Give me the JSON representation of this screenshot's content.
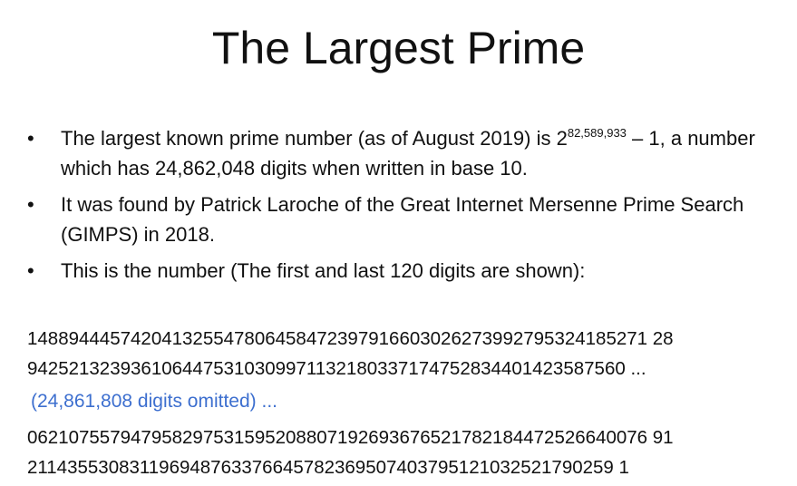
{
  "slide": {
    "title": "The Largest Prime",
    "bullets": [
      {
        "text_before": "The largest known prime number (as of August 2019) is 2",
        "superscript": "82,589,933",
        "text_after": " – 1, a number which has 24,862,048 digits when written in base 10."
      },
      {
        "text": "It was found by Patrick Laroche of the Great Internet Mersenne Prime Search (GIMPS) in 2018."
      },
      {
        "text": "This is the number (The first and last 120 digits are shown):"
      }
    ],
    "bullet_symbol": "•",
    "digits_first": [
      "148894445742041325547806458472397916603026273992795324185271 28",
      "9425213239361064475310309971132180337174752834401423587560 ..."
    ],
    "omitted": "(24,861,808 digits omitted) ...",
    "digits_last": [
      "062107557947958297531595208807192693676521782184472526640076 91",
      "211435530831196948763376645782369507403795121032521790259 1"
    ],
    "colors": {
      "text": "#111111",
      "omitted": "#3d6fcf",
      "background": "#ffffff"
    }
  }
}
